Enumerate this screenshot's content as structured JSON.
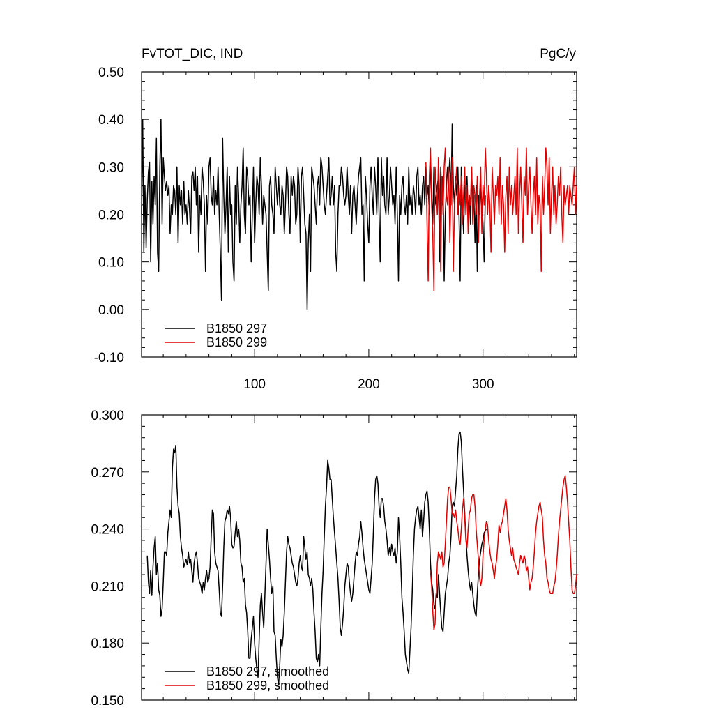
{
  "colors": {
    "run_a": "#000000",
    "run_b": "#e00000"
  },
  "chart_data": [
    {
      "type": "line",
      "title_left": "FvTOT_DIC, IND",
      "title_right": "PgC/y",
      "xlim": [
        1,
        382
      ],
      "ylim": [
        -0.1,
        0.5
      ],
      "yticks": [
        "-0.10",
        "0.00",
        "0.10",
        "0.20",
        "0.30",
        "0.40",
        "0.50"
      ],
      "xticks": [
        "100",
        "200",
        "300"
      ],
      "legend_position": "bottom-left",
      "series": [
        {
          "name": "B1850 297",
          "color": "#000000",
          "x_start": 1,
          "values": [
            0.2,
            0.4,
            0.12,
            0.26,
            0.13,
            0.23,
            0.29,
            0.31,
            0.1,
            0.27,
            0.18,
            0.28,
            0.22,
            0.36,
            0.12,
            0.08,
            0.3,
            0.4,
            0.18,
            0.32,
            0.28,
            0.25,
            0.27,
            0.24,
            0.26,
            0.16,
            0.22,
            0.2,
            0.26,
            0.25,
            0.2,
            0.3,
            0.14,
            0.26,
            0.22,
            0.25,
            0.18,
            0.27,
            0.2,
            0.22,
            0.18,
            0.25,
            0.21,
            0.16,
            0.28,
            0.29,
            0.25,
            0.3,
            0.22,
            0.28,
            0.12,
            0.24,
            0.2,
            0.3,
            0.27,
            0.22,
            0.08,
            0.24,
            0.18,
            0.3,
            0.32,
            0.24,
            0.22,
            0.28,
            0.2,
            0.25,
            0.22,
            0.3,
            0.2,
            0.12,
            0.02,
            0.36,
            0.24,
            0.16,
            0.22,
            0.3,
            0.12,
            0.28,
            0.2,
            0.22,
            0.1,
            0.06,
            0.26,
            0.18,
            0.3,
            0.24,
            0.14,
            0.22,
            0.26,
            0.34,
            0.2,
            0.16,
            0.3,
            0.28,
            0.22,
            0.24,
            0.1,
            0.2,
            0.3,
            0.14,
            0.22,
            0.28,
            0.26,
            0.2,
            0.32,
            0.26,
            0.18,
            0.24,
            0.22,
            0.2,
            0.12,
            0.04,
            0.26,
            0.28,
            0.22,
            0.2,
            0.16,
            0.3,
            0.26,
            0.22,
            0.28,
            0.22,
            0.2,
            0.26,
            0.24,
            0.16,
            0.22,
            0.3,
            0.28,
            0.2,
            0.16,
            0.28,
            0.24,
            0.28,
            0.26,
            0.18,
            0.2,
            0.3,
            0.26,
            0.14,
            0.28,
            0.3,
            0.24,
            0.18,
            0.16,
            0.0,
            0.14,
            0.2,
            0.08,
            0.3,
            0.28,
            0.26,
            0.22,
            0.18,
            0.26,
            0.28,
            0.22,
            0.32,
            0.3,
            0.26,
            0.22,
            0.2,
            0.24,
            0.28,
            0.32,
            0.22,
            0.24,
            0.28,
            0.22,
            0.26,
            0.12,
            0.08,
            0.2,
            0.26,
            0.26,
            0.3,
            0.28,
            0.24,
            0.22,
            0.24,
            0.3,
            0.24,
            0.2,
            0.26,
            0.16,
            0.24,
            0.26,
            0.22,
            0.18,
            0.24,
            0.28,
            0.3,
            0.32,
            0.2,
            0.22,
            0.06,
            0.28,
            0.24,
            0.18,
            0.14,
            0.26,
            0.3,
            0.24,
            0.2,
            0.3,
            0.26,
            0.2,
            0.32,
            0.2,
            0.1,
            0.32,
            0.24,
            0.28,
            0.22,
            0.2,
            0.32,
            0.2,
            0.24,
            0.3,
            0.26,
            0.22,
            0.24,
            0.18,
            0.3,
            0.2,
            0.06,
            0.24,
            0.2,
            0.26,
            0.28,
            0.22,
            0.2,
            0.24,
            0.18,
            0.3,
            0.22,
            0.24,
            0.2,
            0.26,
            0.24,
            0.2,
            0.28,
            0.3,
            0.22,
            0.24,
            0.2,
            0.26,
            0.28,
            0.22,
            0.3,
            0.24,
            0.26,
            0.2,
            0.32,
            0.24,
            0.18,
            0.3,
            0.22,
            0.24,
            0.26,
            0.28,
            0.1,
            0.3,
            0.22,
            0.28,
            0.06,
            0.2,
            0.26,
            0.3,
            0.28,
            0.32,
            0.22,
            0.39,
            0.26,
            0.22,
            0.28,
            0.24,
            0.3,
            0.2,
            0.06,
            0.3,
            0.22,
            0.16,
            0.26,
            0.24,
            0.28,
            0.2,
            0.24,
            0.18,
            0.3,
            0.22,
            0.24,
            0.14,
            0.26,
            0.08,
            0.24,
            0.2,
            0.26,
            0.22,
            0.18,
            0.1,
            0.24
          ]
        },
        {
          "name": "B1850 299",
          "color": "#e00000",
          "x_start": 250,
          "values": [
            0.31,
            0.18,
            0.06,
            0.28,
            0.34,
            0.22,
            0.16,
            0.04,
            0.3,
            0.26,
            0.2,
            0.32,
            0.24,
            0.08,
            0.28,
            0.2,
            0.3,
            0.34,
            0.24,
            0.22,
            0.3,
            0.14,
            0.26,
            0.32,
            0.08,
            0.22,
            0.26,
            0.3,
            0.2,
            0.26,
            0.22,
            0.28,
            0.18,
            0.24,
            0.3,
            0.2,
            0.26,
            0.16,
            0.24,
            0.22,
            0.3,
            0.18,
            0.26,
            0.24,
            0.2,
            0.28,
            0.14,
            0.24,
            0.3,
            0.16,
            0.26,
            0.22,
            0.34,
            0.28,
            0.2,
            0.26,
            0.22,
            0.12,
            0.3,
            0.24,
            0.18,
            0.26,
            0.24,
            0.28,
            0.2,
            0.32,
            0.18,
            0.26,
            0.22,
            0.12,
            0.24,
            0.28,
            0.16,
            0.3,
            0.22,
            0.26,
            0.2,
            0.24,
            0.28,
            0.2,
            0.34,
            0.16,
            0.24,
            0.3,
            0.22,
            0.14,
            0.28,
            0.24,
            0.34,
            0.2,
            0.26,
            0.3,
            0.22,
            0.16,
            0.24,
            0.28,
            0.2,
            0.32,
            0.18,
            0.24,
            0.22,
            0.08,
            0.28,
            0.2,
            0.26,
            0.34,
            0.3,
            0.22,
            0.32,
            0.16,
            0.24,
            0.3,
            0.2,
            0.26,
            0.18,
            0.22,
            0.28,
            0.24,
            0.3,
            0.2,
            0.14,
            0.26,
            0.22,
            0.24,
            0.26,
            0.2,
            0.26,
            0.24,
            0.22,
            0.26,
            0.3,
            0.2,
            0.26
          ]
        }
      ]
    },
    {
      "type": "line",
      "xlim": [
        1,
        382
      ],
      "ylim": [
        0.15,
        0.3
      ],
      "yticks": [
        "0.150",
        "0.180",
        "0.210",
        "0.240",
        "0.270",
        "0.300"
      ],
      "legend_position": "bottom-left",
      "series": [
        {
          "name": "B1850 297, smoothed",
          "color": "#000000",
          "x_start": 6,
          "values": [
            0.226,
            0.212,
            0.206,
            0.218,
            0.205,
            0.22,
            0.23,
            0.236,
            0.216,
            0.222,
            0.208,
            0.205,
            0.194,
            0.198,
            0.212,
            0.228,
            0.228,
            0.226,
            0.238,
            0.244,
            0.25,
            0.246,
            0.272,
            0.282,
            0.28,
            0.284,
            0.262,
            0.252,
            0.248,
            0.236,
            0.23,
            0.226,
            0.22,
            0.222,
            0.224,
            0.221,
            0.228,
            0.222,
            0.224,
            0.218,
            0.212,
            0.222,
            0.226,
            0.228,
            0.222,
            0.214,
            0.212,
            0.21,
            0.206,
            0.212,
            0.208,
            0.214,
            0.218,
            0.212,
            0.214,
            0.22,
            0.236,
            0.25,
            0.248,
            0.228,
            0.222,
            0.22,
            0.218,
            0.208,
            0.196,
            0.194,
            0.21,
            0.23,
            0.244,
            0.246,
            0.25,
            0.248,
            0.252,
            0.246,
            0.232,
            0.23,
            0.231,
            0.238,
            0.244,
            0.236,
            0.24,
            0.234,
            0.222,
            0.22,
            0.212,
            0.214,
            0.2,
            0.196,
            0.186,
            0.172,
            0.172,
            0.182,
            0.188,
            0.194,
            0.18,
            0.172,
            0.166,
            0.162,
            0.182,
            0.2,
            0.206,
            0.196,
            0.188,
            0.205,
            0.222,
            0.24,
            0.232,
            0.224,
            0.214,
            0.206,
            0.21,
            0.186,
            0.184,
            0.172,
            0.162,
            0.158,
            0.168,
            0.182,
            0.178,
            0.184,
            0.196,
            0.212,
            0.228,
            0.236,
            0.232,
            0.23,
            0.226,
            0.222,
            0.22,
            0.216,
            0.212,
            0.21,
            0.214,
            0.222,
            0.226,
            0.22,
            0.218,
            0.236,
            0.23,
            0.224,
            0.228,
            0.216,
            0.214,
            0.21,
            0.214,
            0.208,
            0.196,
            0.186,
            0.172,
            0.17,
            0.174,
            0.168,
            0.188,
            0.206,
            0.218,
            0.236,
            0.252,
            0.262,
            0.276,
            0.272,
            0.266,
            0.266,
            0.256,
            0.246,
            0.238,
            0.23,
            0.222,
            0.214,
            0.202,
            0.188,
            0.184,
            0.19,
            0.198,
            0.21,
            0.216,
            0.222,
            0.22,
            0.212,
            0.206,
            0.202,
            0.206,
            0.214,
            0.222,
            0.228,
            0.226,
            0.232,
            0.236,
            0.244,
            0.238,
            0.23,
            0.224,
            0.22,
            0.216,
            0.212,
            0.208,
            0.206,
            0.214,
            0.222,
            0.238,
            0.256,
            0.266,
            0.268,
            0.264,
            0.252,
            0.246,
            0.256,
            0.256,
            0.252,
            0.244,
            0.24,
            0.234,
            0.226,
            0.23,
            0.226,
            0.232,
            0.228,
            0.226,
            0.23,
            0.222,
            0.228,
            0.246,
            0.236,
            0.222,
            0.204,
            0.196,
            0.186,
            0.174,
            0.17,
            0.166,
            0.164,
            0.176,
            0.188,
            0.206,
            0.226,
            0.24,
            0.246,
            0.25,
            0.252,
            0.246,
            0.24,
            0.25,
            0.236,
            0.244,
            0.254,
            0.258,
            0.26,
            0.254,
            0.24,
            0.222,
            0.212,
            0.208,
            0.2,
            0.198,
            0.206,
            0.204,
            0.216,
            0.206,
            0.196,
            0.188,
            0.186,
            0.196,
            0.206,
            0.21,
            0.214,
            0.222,
            0.226,
            0.236,
            0.252,
            0.254,
            0.252,
            0.26,
            0.268,
            0.282,
            0.29,
            0.291,
            0.286,
            0.272,
            0.26,
            0.248,
            0.236,
            0.226,
            0.218,
            0.212,
            0.208,
            0.212,
            0.206,
            0.2,
            0.196,
            0.194,
            0.206,
            0.216,
            0.224,
            0.228,
            0.232,
            0.234,
            0.238,
            0.239,
            0.24
          ]
        },
        {
          "name": "B1850 299, smoothed",
          "color": "#e00000",
          "x_start": 254,
          "values": [
            0.218,
            0.21,
            0.197,
            0.187,
            0.19,
            0.204,
            0.222,
            0.228,
            0.226,
            0.224,
            0.228,
            0.22,
            0.222,
            0.232,
            0.244,
            0.256,
            0.262,
            0.262,
            0.256,
            0.248,
            0.248,
            0.246,
            0.25,
            0.244,
            0.24,
            0.234,
            0.232,
            0.24,
            0.25,
            0.256,
            0.246,
            0.234,
            0.23,
            0.24,
            0.248,
            0.25,
            0.256,
            0.258,
            0.258,
            0.252,
            0.24,
            0.232,
            0.224,
            0.214,
            0.21,
            0.214,
            0.226,
            0.234,
            0.24,
            0.244,
            0.242,
            0.234,
            0.228,
            0.224,
            0.222,
            0.218,
            0.214,
            0.22,
            0.224,
            0.232,
            0.242,
            0.238,
            0.242,
            0.244,
            0.248,
            0.252,
            0.256,
            0.25,
            0.24,
            0.234,
            0.23,
            0.226,
            0.23,
            0.224,
            0.222,
            0.22,
            0.218,
            0.216,
            0.222,
            0.226,
            0.224,
            0.222,
            0.226,
            0.224,
            0.218,
            0.22,
            0.214,
            0.208,
            0.212,
            0.214,
            0.22,
            0.228,
            0.238,
            0.244,
            0.248,
            0.252,
            0.254,
            0.25,
            0.246,
            0.234,
            0.226,
            0.222,
            0.214,
            0.212,
            0.208,
            0.206,
            0.206,
            0.206,
            0.21,
            0.212,
            0.218,
            0.226,
            0.236,
            0.244,
            0.25,
            0.256,
            0.262,
            0.266,
            0.268,
            0.262,
            0.254,
            0.244,
            0.234,
            0.22,
            0.208,
            0.206,
            0.206,
            0.21,
            0.216,
            0.216
          ]
        }
      ]
    }
  ]
}
